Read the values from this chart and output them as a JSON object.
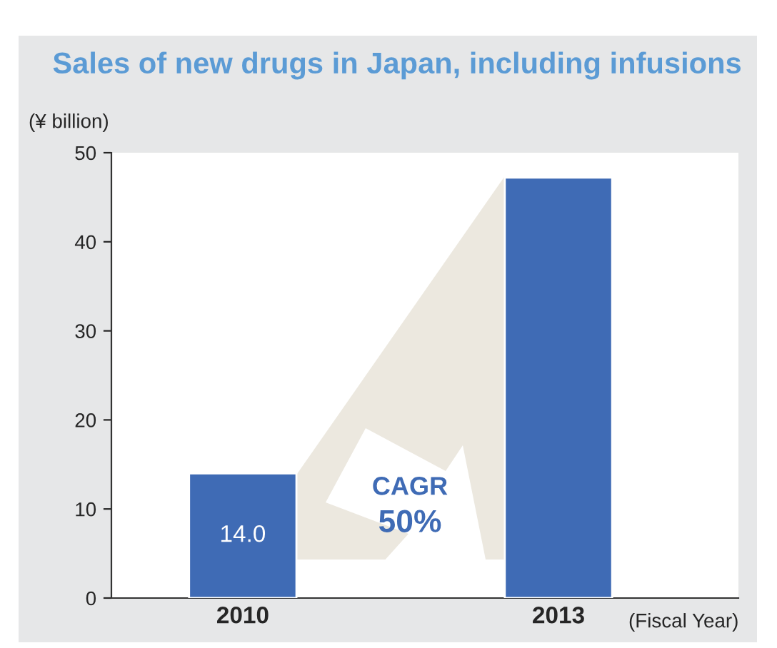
{
  "chart_data": {
    "type": "bar",
    "title": "Sales of new drugs in Japan, including infusions",
    "ylabel": "(¥ billion)",
    "xlabel": "(Fiscal Year)",
    "categories": [
      "2010",
      "2013"
    ],
    "values": [
      14.0,
      47.2
    ],
    "value_labels": [
      "14.0",
      null
    ],
    "color": "#3f6bb5",
    "ylim": [
      0,
      50
    ],
    "yticks": [
      0,
      10,
      20,
      30,
      40,
      50
    ],
    "grid": false,
    "annotations": [
      "CAGR",
      "50%"
    ]
  }
}
